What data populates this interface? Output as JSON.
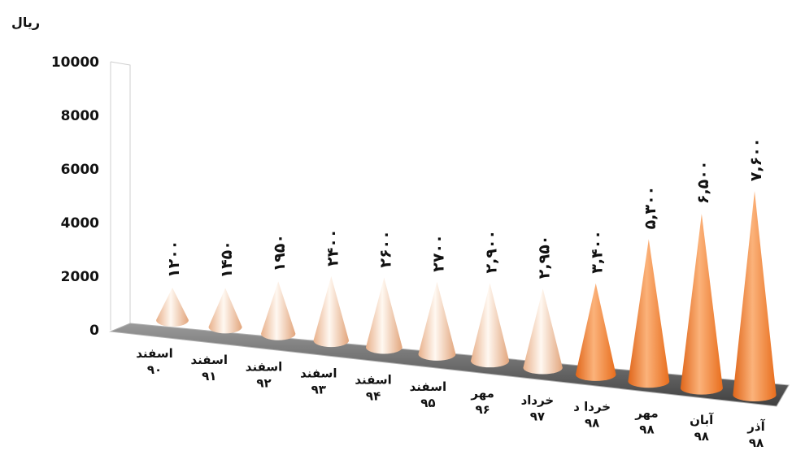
{
  "chart_data": {
    "type": "bar",
    "style": "3d-cones",
    "title": "",
    "ylabel": "ریال",
    "xlabel": "",
    "ylim": [
      0,
      10000
    ],
    "y_ticks": [
      "0",
      "2000",
      "4000",
      "6000",
      "8000",
      "10000"
    ],
    "grid": false,
    "categories": [
      "اسفند ۹۰",
      "اسفند ۹۱",
      "اسفند ۹۲",
      "اسفند ۹۳",
      "اسفند ۹۴",
      "اسفند ۹۵",
      "مهر ۹۶",
      "خرداد ۹۷",
      "خردا د ۹۸",
      "مهر ۹۸",
      "آبان ۹۸",
      "آذر ۹۸"
    ],
    "values": [
      1200,
      1450,
      1950,
      2400,
      2600,
      2700,
      2900,
      2950,
      3400,
      5300,
      6500,
      7600
    ],
    "data_labels": [
      "۱۲۰۰",
      "۱۴۵۰",
      "۱۹۵۰",
      "۲۴۰۰",
      "۲۶۰۰",
      "۲۷۰۰",
      "۲,۹۰۰",
      "۲,۹۵۰",
      "۳,۴۰۰",
      "۵,۳۰۰",
      "۶,۵۰۰",
      "۷,۶۰۰"
    ],
    "colors": {
      "light_cone_base": "#f3c9a4",
      "light_cone_highlight": "#fff8f1",
      "dark_cone_base": "#f47b20",
      "dark_cone_highlight": "#fbb27a",
      "floor": "#6a6a6a",
      "axis_wall": "#cfcfcf"
    }
  }
}
